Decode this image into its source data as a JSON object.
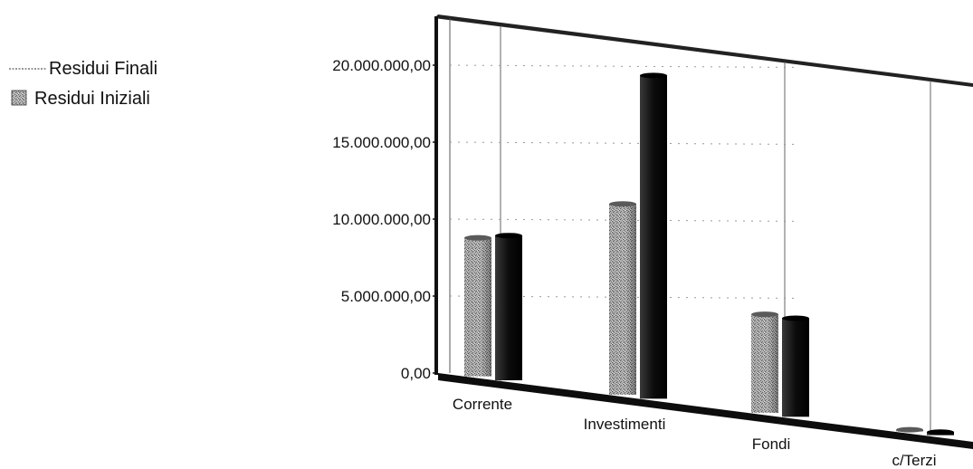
{
  "chart_data": {
    "type": "bar",
    "title": "",
    "xlabel": "",
    "ylabel": "",
    "categories": [
      "Corrente",
      "Investimenti",
      "Fondi",
      "c/Terzi"
    ],
    "series": [
      {
        "name": "Residui Finali",
        "values": [
          9000000,
          12400000,
          6400000,
          100000
        ],
        "color": "#8a8a8a"
      },
      {
        "name": "Residui Iniziali",
        "values": [
          9400000,
          21000000,
          6400000,
          200000
        ],
        "color": "#101010"
      }
    ],
    "y_ticks": [
      "0,00",
      "5.000.000,00",
      "10.000.000,00",
      "15.000.000,00",
      "20.000.000,00"
    ],
    "y_tick_values": [
      0,
      5000000,
      10000000,
      15000000,
      20000000
    ],
    "ylim": [
      0,
      22000000
    ],
    "grid": true,
    "legend_position": "top-left"
  }
}
